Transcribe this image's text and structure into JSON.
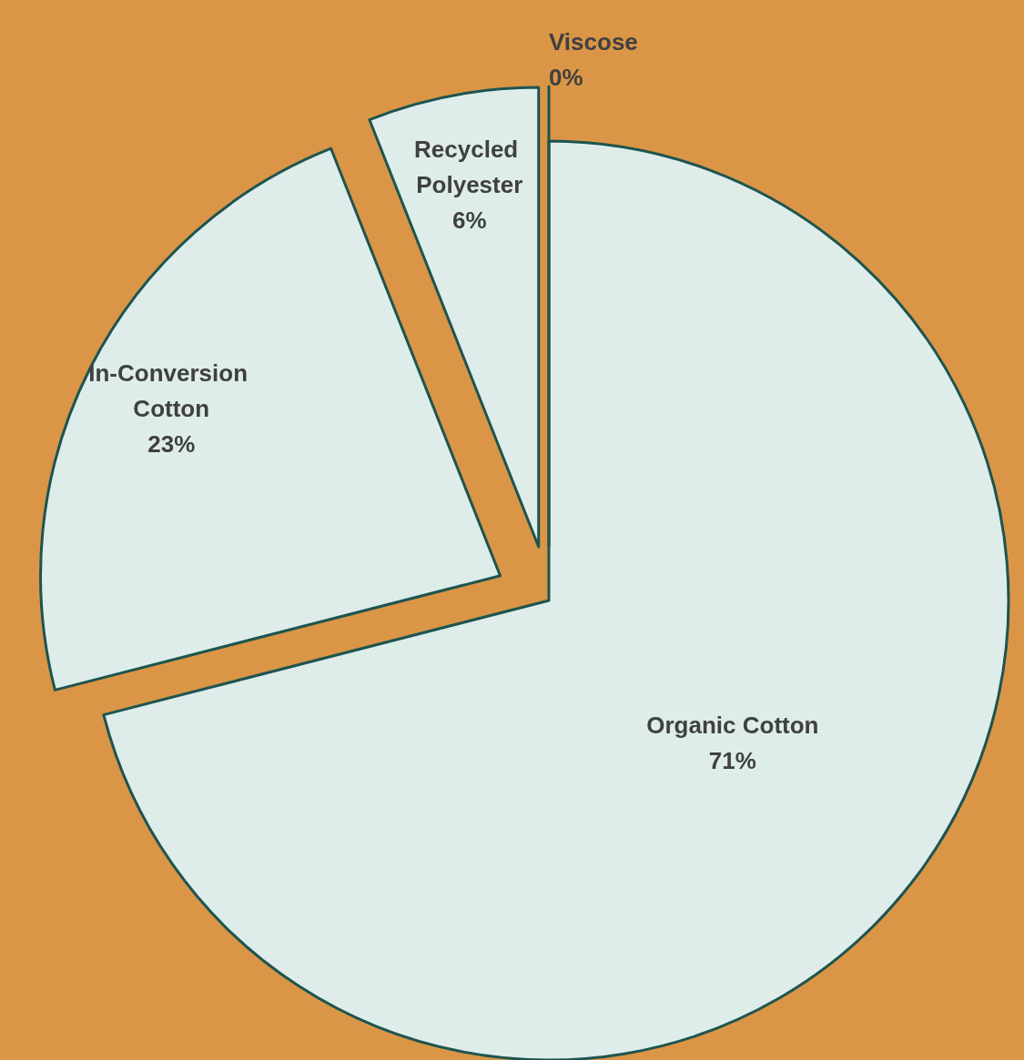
{
  "chart_data": {
    "type": "pie",
    "categories": [
      "Organic Cotton",
      "In-Conversion Cotton",
      "Recycled Polyester",
      "Viscose"
    ],
    "values": [
      71,
      23,
      6,
      0
    ],
    "value_labels": [
      "71%",
      "23%",
      "6%",
      "0%"
    ],
    "colors": [
      "#deedea",
      "#deedea",
      "#deedea",
      "#deedea"
    ],
    "data_labels": true,
    "legend": false
  }
}
